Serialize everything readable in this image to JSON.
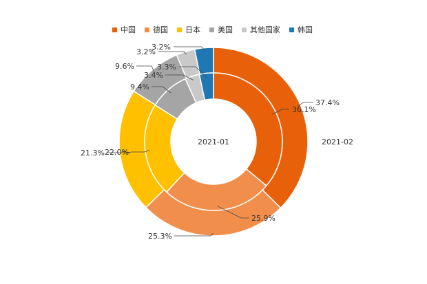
{
  "chart_data": {
    "type": "pie",
    "subtype": "nested-donut",
    "legend_position": "top",
    "categories": [
      "中国",
      "德国",
      "日本",
      "美国",
      "其他国家",
      "韩国"
    ],
    "colors": [
      "#E8600A",
      "#F28E4B",
      "#FFC000",
      "#A5A5A5",
      "#C9C9C9",
      "#1F77B4"
    ],
    "series": [
      {
        "name": "2021-01",
        "ring": "inner",
        "values": [
          36.1,
          25.9,
          22.0,
          9.4,
          3.4,
          3.3
        ],
        "labels": [
          "36.1%",
          "25.9%",
          "22.0%",
          "9.4%",
          "3.4%",
          "3.3%"
        ]
      },
      {
        "name": "2021-02",
        "ring": "outer",
        "values": [
          37.4,
          25.3,
          21.3,
          9.6,
          3.2,
          3.2
        ],
        "labels": [
          "37.4%",
          "25.3%",
          "21.3%",
          "9.6%",
          "3.2%",
          "3.2%"
        ]
      }
    ]
  }
}
